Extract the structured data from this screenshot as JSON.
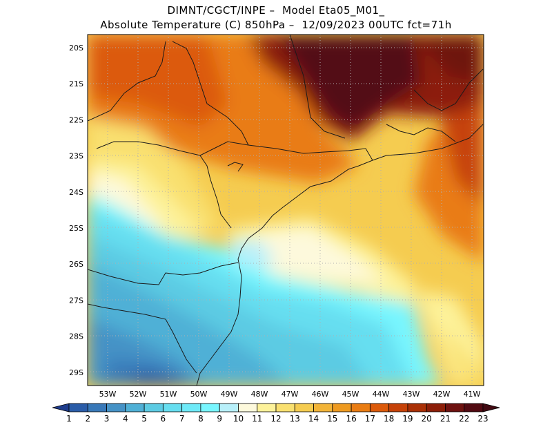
{
  "header": {
    "line1": "DIMNT/CGCT/INPE –  Model Eta05_M01_",
    "line2": "Absolute Temperature (C) 850hPa –  12/09/2023 00UTC fct=71h"
  },
  "map": {
    "lat_labels": [
      "20S",
      "21S",
      "22S",
      "23S",
      "24S",
      "25S",
      "26S",
      "27S",
      "28S",
      "29S"
    ],
    "lon_labels": [
      "53W",
      "52W",
      "51W",
      "50W",
      "49W",
      "48W",
      "47W",
      "46W",
      "45W",
      "44W",
      "43W",
      "42W",
      "41W"
    ],
    "gridlines": true,
    "gridline_style": "dotted",
    "region": "Southern and southeastern Brazil"
  },
  "colorbar": {
    "labels": [
      "1",
      "2",
      "3",
      "4",
      "5",
      "6",
      "7",
      "8",
      "9",
      "10",
      "11",
      "12",
      "13",
      "14",
      "15",
      "16",
      "17",
      "18",
      "19",
      "20",
      "21",
      "22",
      "23"
    ],
    "colors": [
      "#1e3c8c",
      "#2a5ca8",
      "#3878b8",
      "#4592c6",
      "#4fb0d6",
      "#5ccbe3",
      "#66def0",
      "#6eeaf8",
      "#78f6ff",
      "#b8f0fa",
      "#fdf9dc",
      "#fdf29a",
      "#f9e070",
      "#f5cc50",
      "#f2b438",
      "#ee9a20",
      "#e97c12",
      "#dc5a0a",
      "#c64208",
      "#aa3006",
      "#8c1e08",
      "#6e1210",
      "#520a12",
      "#420a12"
    ]
  }
}
